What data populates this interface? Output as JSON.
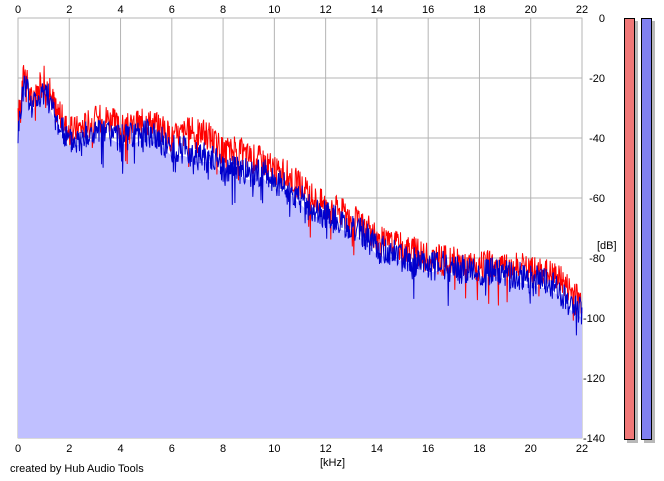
{
  "chart_data": {
    "type": "line",
    "x_ticks": [
      "0",
      "2",
      "4",
      "6",
      "8",
      "10",
      "12",
      "14",
      "16",
      "18",
      "20",
      "22"
    ],
    "y_ticks": [
      "0",
      "-20",
      "-40",
      "-60",
      "-80",
      "-100",
      "-120",
      "-140"
    ],
    "xlabel": "[kHz]",
    "ylabel": "[dB]",
    "xlim": [
      0,
      22
    ],
    "ylim": [
      -140,
      0
    ],
    "grid": true,
    "series": [
      {
        "color": "#ff0000",
        "x": [
          0,
          0.25,
          0.5,
          0.75,
          1,
          1.5,
          2,
          2.5,
          3,
          3.5,
          4,
          4.5,
          5,
          5.5,
          6,
          6.5,
          7,
          7.5,
          8,
          8.5,
          9,
          9.5,
          10,
          10.5,
          11,
          11.5,
          12,
          12.5,
          13,
          13.5,
          14,
          14.5,
          15,
          15.5,
          16,
          16.5,
          17,
          17.5,
          18,
          18.5,
          19,
          19.5,
          20,
          20.5,
          21,
          21.5,
          22
        ],
        "y": [
          -34,
          -17,
          -27,
          -25,
          -20,
          -30,
          -38,
          -36,
          -34,
          -33,
          -37,
          -36,
          -34,
          -36,
          -40,
          -38,
          -38,
          -39,
          -45,
          -44,
          -46,
          -47,
          -51,
          -52,
          -56,
          -60,
          -62,
          -64,
          -67,
          -69,
          -74,
          -75,
          -76,
          -78,
          -80,
          -80,
          -81,
          -82,
          -83,
          -82,
          -83,
          -83,
          -84,
          -84,
          -86,
          -90,
          -94
        ]
      },
      {
        "color": "#0000cc",
        "x": [
          0,
          0.25,
          0.5,
          0.75,
          1,
          1.5,
          2,
          2.5,
          3,
          3.5,
          4,
          4.5,
          5,
          5.5,
          6,
          6.5,
          7,
          7.5,
          8,
          8.5,
          9,
          9.5,
          10,
          10.5,
          11,
          11.5,
          12,
          12.5,
          13,
          13.5,
          14,
          14.5,
          15,
          15.5,
          16,
          16.5,
          17,
          17.5,
          18,
          18.5,
          19,
          19.5,
          20,
          20.5,
          21,
          21.5,
          22
        ],
        "y": [
          -38,
          -20,
          -29,
          -27,
          -22,
          -34,
          -41,
          -40,
          -38,
          -38,
          -40,
          -40,
          -38,
          -40,
          -44,
          -44,
          -46,
          -46,
          -50,
          -50,
          -52,
          -51,
          -55,
          -56,
          -60,
          -64,
          -65,
          -68,
          -70,
          -72,
          -77,
          -78,
          -79,
          -81,
          -83,
          -82,
          -84,
          -84,
          -85,
          -84,
          -85,
          -86,
          -87,
          -88,
          -90,
          -95,
          -98
        ]
      }
    ],
    "fill_color": "#c0c0ff"
  },
  "credit": "created by Hub Audio Tools",
  "meters": [
    {
      "color": "#f07878"
    },
    {
      "color": "#8080f0"
    }
  ]
}
